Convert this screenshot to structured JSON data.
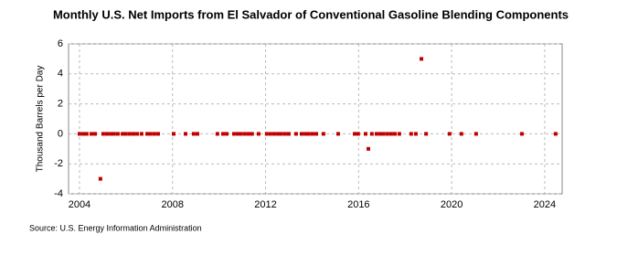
{
  "chart_data": {
    "type": "scatter",
    "title": "Monthly U.S. Net Imports from El Salvador of Conventional Gasoline Blending Components",
    "y_label": "Thousand Barrels per Day",
    "source": "Source: U.S. Energy Information Administration",
    "color": "#c00000",
    "x": [
      2004.0,
      2004.16,
      2004.31,
      2004.51,
      2004.67,
      2004.9,
      2005.02,
      2005.18,
      2005.34,
      2005.49,
      2005.65,
      2005.85,
      2006.0,
      2006.16,
      2006.32,
      2006.48,
      2006.67,
      2006.91,
      2007.06,
      2007.22,
      2007.38,
      2008.05,
      2008.56,
      2008.91,
      2009.07,
      2009.93,
      2010.17,
      2010.33,
      2010.64,
      2010.8,
      2010.95,
      2011.11,
      2011.27,
      2011.42,
      2011.7,
      2012.05,
      2012.21,
      2012.37,
      2012.53,
      2012.68,
      2012.84,
      2013.0,
      2013.31,
      2013.55,
      2013.71,
      2013.86,
      2014.02,
      2014.18,
      2014.49,
      2015.12,
      2015.83,
      2015.98,
      2016.3,
      2016.42,
      2016.57,
      2016.77,
      2016.93,
      2017.08,
      2017.24,
      2017.4,
      2017.56,
      2017.75,
      2018.26,
      2018.46,
      2018.7,
      2018.9,
      2019.91,
      2020.42,
      2021.05,
      2023.02,
      2024.47
    ],
    "values": [
      0,
      0,
      0,
      0,
      0,
      -3,
      0,
      0,
      0,
      0,
      0,
      0,
      0,
      0,
      0,
      0,
      0,
      0,
      0,
      0,
      0,
      0,
      0,
      0,
      0,
      0,
      0,
      0,
      0,
      0,
      0,
      0,
      0,
      0,
      0,
      0,
      0,
      0,
      0,
      0,
      0,
      0,
      0,
      0,
      0,
      0,
      0,
      0,
      0,
      0,
      0,
      0,
      0,
      -1,
      0,
      0,
      0,
      0,
      0,
      0,
      0,
      0,
      0,
      0,
      5,
      0,
      0,
      0,
      0,
      0,
      0
    ],
    "xlim": [
      2003.53,
      2024.75
    ],
    "xticks": [
      2004,
      2008,
      2012,
      2016,
      2020,
      2024
    ],
    "ylim": [
      -4,
      6
    ],
    "yticks": [
      -4,
      -2,
      0,
      2,
      4,
      6
    ],
    "grid": true
  }
}
